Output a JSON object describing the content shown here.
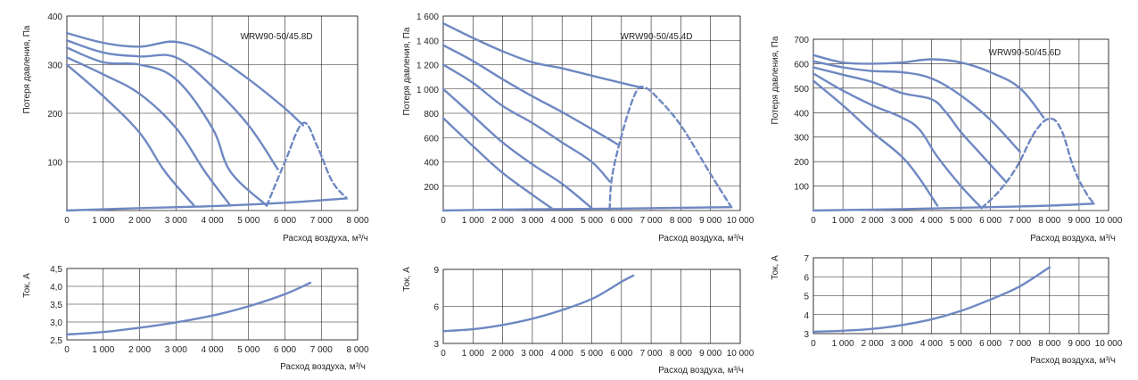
{
  "colors": {
    "curve": "#6e88c2",
    "grid": "#231f20",
    "text": "#231f20"
  },
  "chart_data": [
    {
      "type": "line",
      "title": "WRW90-50/45.8D",
      "xlabel": "Расход воздуха, м³/ч",
      "ylabel": "Потеря давления, Па",
      "xlim": [
        0,
        8000
      ],
      "ylim": [
        0,
        400
      ],
      "xticks": [
        0,
        1000,
        2000,
        3000,
        4000,
        5000,
        6000,
        7000,
        8000
      ],
      "xtick_labels": [
        "0",
        "1 000",
        "2 000",
        "3 000",
        "4 000",
        "5 000",
        "6 000",
        "7 000",
        "8 000"
      ],
      "yticks": [
        100,
        200,
        300,
        400
      ],
      "ytick_labels": [
        "100",
        "200",
        "300",
        "400"
      ],
      "grid": true,
      "series": [
        {
          "values": [
            [
              0,
              365
            ],
            [
              1000,
              345
            ],
            [
              2000,
              337
            ],
            [
              3000,
              347
            ],
            [
              4000,
              320
            ],
            [
              5000,
              270
            ],
            [
              6000,
              210
            ],
            [
              6500,
              175
            ]
          ]
        },
        {
          "values": [
            [
              0,
              350
            ],
            [
              1000,
              325
            ],
            [
              2000,
              317
            ],
            [
              3000,
              315
            ],
            [
              4000,
              255
            ],
            [
              5000,
              175
            ],
            [
              5800,
              85
            ]
          ]
        },
        {
          "values": [
            [
              0,
              335
            ],
            [
              1000,
              305
            ],
            [
              2000,
              300
            ],
            [
              3000,
              270
            ],
            [
              4000,
              170
            ],
            [
              4500,
              80
            ],
            [
              5500,
              10
            ]
          ]
        },
        {
          "values": [
            [
              0,
              315
            ],
            [
              1000,
              280
            ],
            [
              2000,
              240
            ],
            [
              3000,
              170
            ],
            [
              3800,
              80
            ],
            [
              4500,
              10
            ]
          ]
        },
        {
          "values": [
            [
              0,
              300
            ],
            [
              1000,
              235
            ],
            [
              2000,
              160
            ],
            [
              2700,
              80
            ],
            [
              3500,
              10
            ]
          ]
        },
        {
          "values": [
            [
              0,
              0
            ],
            [
              2000,
              5
            ],
            [
              4000,
              9
            ],
            [
              6000,
              16
            ],
            [
              7700,
              25
            ]
          ]
        },
        {
          "dashed": true,
          "values": [
            [
              5500,
              10
            ],
            [
              6000,
              100
            ],
            [
              6500,
              180
            ],
            [
              6900,
              130
            ],
            [
              7300,
              60
            ],
            [
              7700,
              25
            ]
          ]
        }
      ]
    },
    {
      "type": "line",
      "title": "WRW90-50/45.4D",
      "xlabel": "Расход воздуха, м³/ч",
      "ylabel": "Потеря давления, Па",
      "xlim": [
        0,
        10000
      ],
      "ylim": [
        0,
        1600
      ],
      "xticks": [
        0,
        1000,
        2000,
        3000,
        4000,
        5000,
        6000,
        7000,
        8000,
        9000,
        10000
      ],
      "xtick_labels": [
        "0",
        "1 000",
        "2 000",
        "3 000",
        "4 000",
        "5 000",
        "6 000",
        "7 000",
        "8 000",
        "9 000",
        "10 000"
      ],
      "yticks": [
        200,
        400,
        600,
        800,
        1000,
        1200,
        1400,
        1600
      ],
      "ytick_labels": [
        "200",
        "400",
        "600",
        "800",
        "1 000",
        "1 200",
        "1 400",
        "1 600"
      ],
      "grid": true,
      "series": [
        {
          "values": [
            [
              0,
              1540
            ],
            [
              1000,
              1420
            ],
            [
              2000,
              1310
            ],
            [
              3000,
              1220
            ],
            [
              4000,
              1170
            ],
            [
              5000,
              1110
            ],
            [
              6000,
              1050
            ],
            [
              6700,
              1010
            ]
          ]
        },
        {
          "values": [
            [
              0,
              1360
            ],
            [
              1000,
              1230
            ],
            [
              2000,
              1080
            ],
            [
              3000,
              940
            ],
            [
              4000,
              810
            ],
            [
              5000,
              670
            ],
            [
              5900,
              540
            ]
          ]
        },
        {
          "values": [
            [
              0,
              1200
            ],
            [
              1000,
              1050
            ],
            [
              2000,
              860
            ],
            [
              3000,
              720
            ],
            [
              4000,
              560
            ],
            [
              5000,
              400
            ],
            [
              5600,
              240
            ]
          ]
        },
        {
          "values": [
            [
              0,
              1000
            ],
            [
              1000,
              780
            ],
            [
              2000,
              560
            ],
            [
              3000,
              380
            ],
            [
              4000,
              220
            ],
            [
              5000,
              20
            ]
          ]
        },
        {
          "values": [
            [
              0,
              760
            ],
            [
              1000,
              530
            ],
            [
              2000,
              310
            ],
            [
              3000,
              130
            ],
            [
              3700,
              10
            ]
          ]
        },
        {
          "values": [
            [
              0,
              0
            ],
            [
              3000,
              10
            ],
            [
              6000,
              16
            ],
            [
              9700,
              28
            ]
          ]
        },
        {
          "dashed": true,
          "values": [
            [
              5600,
              10
            ],
            [
              5700,
              300
            ],
            [
              6100,
              700
            ],
            [
              6500,
              980
            ],
            [
              6800,
              1010
            ],
            [
              7200,
              930
            ],
            [
              8000,
              700
            ],
            [
              9000,
              300
            ],
            [
              9700,
              28
            ]
          ]
        }
      ]
    },
    {
      "type": "line",
      "title": "WRW90-50/45.6D",
      "xlabel": "Расход воздуха, м³/ч",
      "ylabel": "Потеря давления, Па",
      "xlim": [
        0,
        10000
      ],
      "ylim": [
        0,
        700
      ],
      "xticks": [
        0,
        1000,
        2000,
        3000,
        4000,
        5000,
        6000,
        7000,
        8000,
        9000,
        10000
      ],
      "xtick_labels": [
        "0",
        "1 000",
        "2 000",
        "3 000",
        "4 000",
        "5 000",
        "6 000",
        "7 000",
        "8 000",
        "9 000",
        "10 000"
      ],
      "yticks": [
        100,
        200,
        300,
        400,
        500,
        600,
        700
      ],
      "ytick_labels": [
        "100",
        "200",
        "300",
        "400",
        "500",
        "600",
        "700"
      ],
      "grid": true,
      "series": [
        {
          "values": [
            [
              0,
              635
            ],
            [
              1000,
              605
            ],
            [
              2000,
              600
            ],
            [
              3000,
              605
            ],
            [
              4000,
              618
            ],
            [
              5000,
              605
            ],
            [
              6000,
              565
            ],
            [
              7000,
              500
            ],
            [
              7800,
              380
            ]
          ]
        },
        {
          "values": [
            [
              0,
              610
            ],
            [
              1000,
              585
            ],
            [
              2000,
              570
            ],
            [
              3000,
              565
            ],
            [
              4000,
              540
            ],
            [
              5000,
              470
            ],
            [
              6000,
              370
            ],
            [
              7000,
              240
            ]
          ]
        },
        {
          "values": [
            [
              0,
              585
            ],
            [
              1000,
              555
            ],
            [
              2000,
              525
            ],
            [
              3000,
              480
            ],
            [
              4000,
              455
            ],
            [
              4500,
              400
            ],
            [
              5000,
              320
            ],
            [
              5600,
              240
            ],
            [
              6500,
              120
            ]
          ]
        },
        {
          "values": [
            [
              0,
              560
            ],
            [
              1000,
              490
            ],
            [
              2000,
              430
            ],
            [
              3000,
              380
            ],
            [
              3600,
              330
            ],
            [
              4200,
              220
            ],
            [
              5000,
              100
            ],
            [
              5700,
              10
            ]
          ]
        },
        {
          "values": [
            [
              0,
              530
            ],
            [
              1000,
              430
            ],
            [
              2000,
              320
            ],
            [
              3000,
              220
            ],
            [
              3600,
              130
            ],
            [
              4200,
              20
            ]
          ]
        },
        {
          "values": [
            [
              0,
              0
            ],
            [
              3000,
              6
            ],
            [
              6000,
              14
            ],
            [
              8000,
              20
            ],
            [
              9500,
              28
            ]
          ]
        },
        {
          "dashed": true,
          "values": [
            [
              5700,
              10
            ],
            [
              6300,
              80
            ],
            [
              6900,
              180
            ],
            [
              7500,
              320
            ],
            [
              8000,
              375
            ],
            [
              8400,
              330
            ],
            [
              8800,
              180
            ],
            [
              9200,
              80
            ],
            [
              9500,
              28
            ]
          ]
        }
      ]
    },
    {
      "type": "line",
      "xlabel": "Расход воздуха, м³/ч",
      "ylabel": "Ток, А",
      "xlim": [
        0,
        8000
      ],
      "ylim": [
        2.5,
        4.5
      ],
      "xticks": [
        0,
        1000,
        2000,
        3000,
        4000,
        5000,
        6000,
        7000,
        8000
      ],
      "xtick_labels": [
        "0",
        "1 000",
        "2 000",
        "3 000",
        "4 000",
        "5 000",
        "6 000",
        "7 000",
        "8 000"
      ],
      "yticks": [
        2.5,
        3.0,
        3.5,
        4.0,
        4.5
      ],
      "ytick_labels": [
        "2,5",
        "3,0",
        "3,5",
        "4,0",
        "4,5"
      ],
      "grid": true,
      "series": [
        {
          "values": [
            [
              0,
              2.65
            ],
            [
              1000,
              2.72
            ],
            [
              2000,
              2.84
            ],
            [
              3000,
              2.99
            ],
            [
              4000,
              3.18
            ],
            [
              5000,
              3.44
            ],
            [
              6000,
              3.78
            ],
            [
              6700,
              4.1
            ]
          ]
        }
      ]
    },
    {
      "type": "line",
      "xlabel": "Расход воздуха, м³/ч",
      "ylabel": "Ток, А",
      "xlim": [
        0,
        10000
      ],
      "ylim": [
        3,
        9
      ],
      "xticks": [
        0,
        1000,
        2000,
        3000,
        4000,
        5000,
        6000,
        7000,
        8000,
        9000,
        10000
      ],
      "xtick_labels": [
        "0",
        "1 000",
        "2 000",
        "3 000",
        "4 000",
        "5 000",
        "6 000",
        "7 000",
        "8 000",
        "9 000",
        "10 000"
      ],
      "yticks": [
        3,
        6,
        9
      ],
      "ytick_labels": [
        "3",
        "6",
        "9"
      ],
      "grid": true,
      "series": [
        {
          "values": [
            [
              0,
              4.0
            ],
            [
              1000,
              4.15
            ],
            [
              2000,
              4.5
            ],
            [
              3000,
              5.0
            ],
            [
              4000,
              5.7
            ],
            [
              5000,
              6.6
            ],
            [
              5600,
              7.4
            ],
            [
              6000,
              8.0
            ],
            [
              6400,
              8.5
            ]
          ]
        }
      ]
    },
    {
      "type": "line",
      "xlabel": "Расход воздуха, м³/ч",
      "ylabel": "Ток, А",
      "xlim": [
        0,
        10000
      ],
      "ylim": [
        3,
        7
      ],
      "xticks": [
        0,
        1000,
        2000,
        3000,
        4000,
        5000,
        6000,
        7000,
        8000,
        9000,
        10000
      ],
      "xtick_labels": [
        "0",
        "1 000",
        "2 000",
        "3 000",
        "4 000",
        "5 000",
        "6 000",
        "7 000",
        "8 000",
        "9 000",
        "10 000"
      ],
      "yticks": [
        3,
        4,
        5,
        6,
        7
      ],
      "ytick_labels": [
        "3",
        "4",
        "5",
        "6",
        "7"
      ],
      "grid": true,
      "series": [
        {
          "values": [
            [
              0,
              3.1
            ],
            [
              1000,
              3.15
            ],
            [
              2000,
              3.25
            ],
            [
              3000,
              3.45
            ],
            [
              4000,
              3.75
            ],
            [
              5000,
              4.2
            ],
            [
              6000,
              4.8
            ],
            [
              7000,
              5.5
            ],
            [
              8000,
              6.5
            ]
          ]
        }
      ]
    }
  ]
}
